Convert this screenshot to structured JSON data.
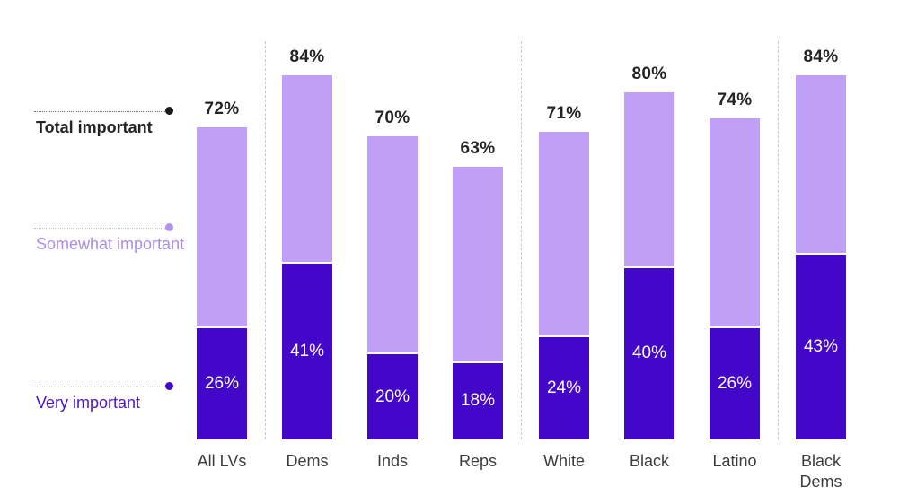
{
  "colors": {
    "very_important_bar": "#4307c9",
    "somewhat_important_bar": "#bfa0f6",
    "total_label_text": "#242424",
    "category_label_text": "#3c3c3c",
    "bar_value_text": "#ffffff",
    "separator_line": "#c8c8c8",
    "background": "#ffffff"
  },
  "legend": {
    "items": [
      {
        "id": "total",
        "label": "Total important",
        "text_color": "#242424",
        "line_color": "#6b6b6b",
        "dot_color": "#1b1b1b",
        "bold": true
      },
      {
        "id": "somewhat",
        "label": "Somewhat important",
        "text_color": "#aa8fe8",
        "line_color": "#c9b4f2",
        "dot_color": "#b094ef",
        "bold": false
      },
      {
        "id": "very",
        "label": "Very important",
        "text_color": "#4c16cc",
        "line_color": "#7a4add",
        "dot_color": "#4307c9",
        "bold": false
      }
    ]
  },
  "chart_data": {
    "type": "bar",
    "subtype": "stacked",
    "title": "",
    "xlabel": "",
    "ylabel": "",
    "ylim": [
      0,
      100
    ],
    "grid": false,
    "legend_position": "left",
    "unit": "%",
    "categories": [
      "All LVs",
      "Dems",
      "Inds",
      "Reps",
      "White",
      "Black",
      "Latino",
      "Black Dems"
    ],
    "series": [
      {
        "name": "Very important",
        "color": "#4307c9",
        "values": [
          26,
          41,
          20,
          18,
          24,
          40,
          26,
          43
        ],
        "labels_shown_inside": true
      },
      {
        "name": "Somewhat important",
        "color": "#bfa0f6",
        "values": [
          46,
          43,
          50,
          45,
          47,
          40,
          48,
          41
        ],
        "labels_shown_inside": false
      }
    ],
    "totals": {
      "name": "Total important",
      "values": [
        72,
        84,
        70,
        63,
        71,
        80,
        74,
        84
      ],
      "labels_shown_above": true
    },
    "separators_after_categories": [
      "All LVs",
      "Reps",
      "Latino"
    ]
  }
}
